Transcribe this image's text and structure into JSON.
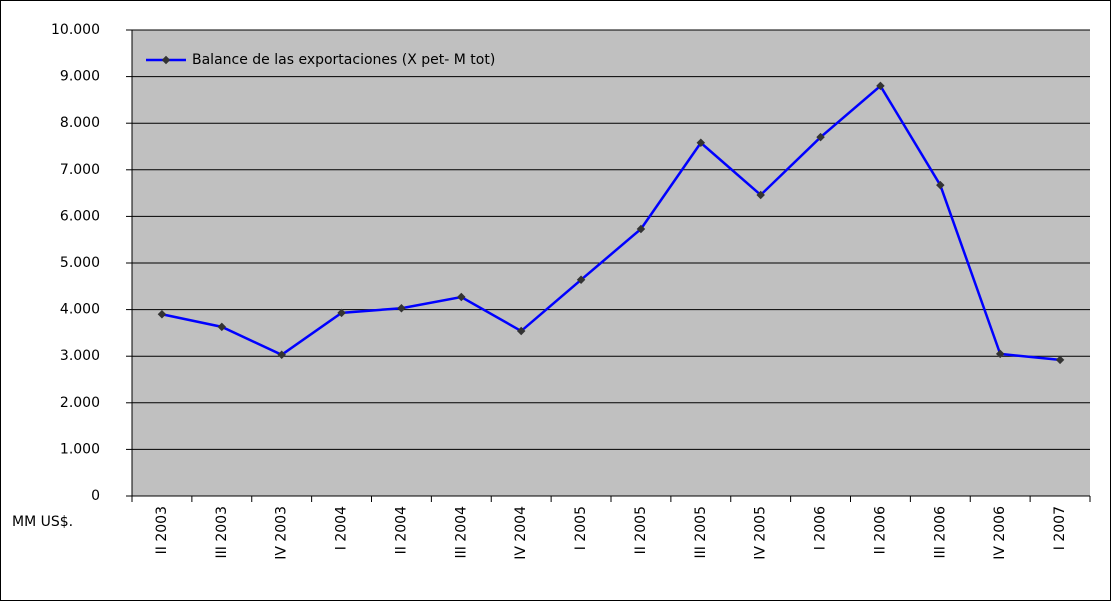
{
  "chart_data": {
    "type": "line",
    "y_axis_label": "MM US$.",
    "categories": [
      "II 2003",
      "III 2003",
      "IV 2003",
      "I 2004",
      "II 2004",
      "III 2004",
      "IV 2004",
      "I 2005",
      "II 2005",
      "III 2005",
      "IV 2005",
      "I 2006",
      "II 2006",
      "III 2006",
      "IV 2006",
      "I 2007"
    ],
    "series": [
      {
        "name": "Balance de las exportaciones (X pet- M tot)",
        "color": "#0000ff",
        "marker_color": "#333333",
        "values": [
          3900,
          3630,
          3030,
          3930,
          4030,
          4270,
          3540,
          4640,
          5730,
          7580,
          6460,
          7700,
          8800,
          6670,
          3050,
          2920
        ]
      }
    ],
    "ylim": [
      0,
      10000
    ],
    "yticks": [
      0,
      {
        "value": 1000,
        "label": "1.000"
      },
      {
        "value": 2000,
        "label": "2.000"
      },
      {
        "value": 3000,
        "label": "3.000"
      },
      {
        "value": 4000,
        "label": "4.000"
      },
      {
        "value": 5000,
        "label": "5.000"
      },
      {
        "value": 6000,
        "label": "6.000"
      },
      {
        "value": 7000,
        "label": "7.000"
      },
      {
        "value": 8000,
        "label": "8.000"
      },
      {
        "value": 9000,
        "label": "9.000"
      },
      {
        "value": 10000,
        "label": "10.000"
      }
    ],
    "grid": true,
    "plot_background": "#c0c0c0",
    "legend": "upper left"
  }
}
